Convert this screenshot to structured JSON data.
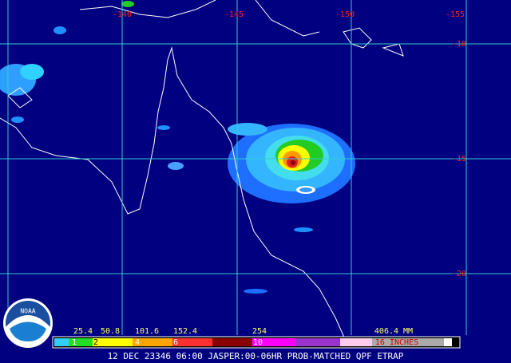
{
  "grid": {
    "lon_labels": [
      "-140",
      "-145",
      "-150",
      "-155"
    ],
    "lat_labels": [
      "-10",
      "-15",
      "-20"
    ]
  },
  "legend": {
    "mm_labels": [
      "25.4",
      "50.8",
      "101.6",
      "152.4",
      "254",
      "406.4 MM"
    ],
    "inch_labels": [
      "1",
      "2",
      "4",
      "6",
      "10",
      "16 INCHES"
    ]
  },
  "footer": "12 DEC 23346 06:00 JASPER:00-06HR PROB-MATCHED QPF ETRAP",
  "logo": "NOAA"
}
